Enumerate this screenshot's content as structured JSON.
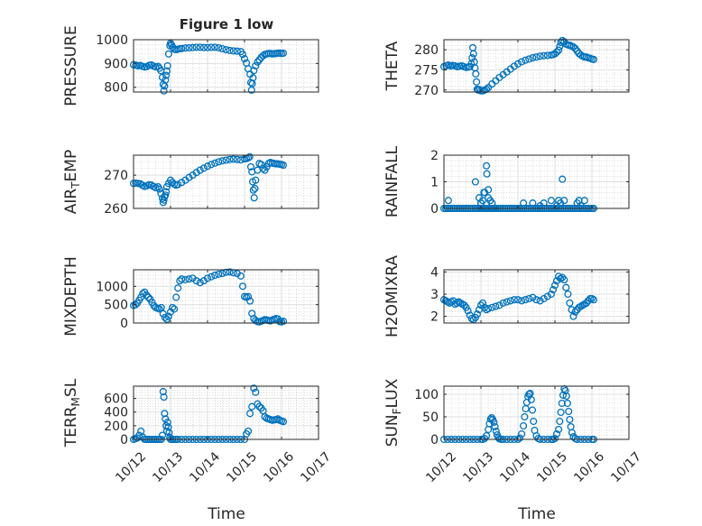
{
  "figure": {
    "title": "Figure 1 low",
    "xlabel": "Time"
  },
  "colors": {
    "marker": "#0072BD",
    "axes": "#262626",
    "grid": "#dfdfdf",
    "minor_grid": "#c8c8c8"
  },
  "x_ticks": [
    "10/12",
    "10/13",
    "10/14",
    "10/15",
    "10/16",
    "10/17"
  ],
  "chart_data": [
    {
      "type": "scatter",
      "ylabel": "PRESSURE",
      "ylim": [
        780,
        1000
      ],
      "yticks": [
        800,
        900,
        1000
      ],
      "grid": "major+minor",
      "marker": "open circle",
      "x": [
        0.0,
        0.06,
        0.12,
        0.18,
        0.24,
        0.3,
        0.36,
        0.42,
        0.48,
        0.54,
        0.6,
        0.66,
        0.7,
        0.74,
        0.78,
        0.8,
        0.82,
        0.84,
        0.86,
        0.88,
        0.9,
        0.92,
        0.95,
        0.98,
        1.0,
        1.03,
        1.06,
        1.1,
        1.15,
        1.2,
        1.25,
        1.3,
        1.4,
        1.5,
        1.6,
        1.7,
        1.8,
        1.9,
        2.0,
        2.1,
        2.2,
        2.3,
        2.4,
        2.5,
        2.6,
        2.7,
        2.8,
        2.9,
        2.95,
        3.0,
        3.05,
        3.1,
        3.15,
        3.17,
        3.19,
        3.21,
        3.23,
        3.25,
        3.3,
        3.35,
        3.4,
        3.45,
        3.5,
        3.55,
        3.6,
        3.65,
        3.7,
        3.75,
        3.8,
        3.85,
        3.9,
        3.95,
        4.0,
        4.05
      ],
      "y": [
        895,
        893,
        890,
        892,
        888,
        885,
        887,
        892,
        894,
        889,
        886,
        888,
        880,
        870,
        842,
        812,
        785,
        805,
        830,
        850,
        868,
        890,
        940,
        975,
        985,
        978,
        968,
        960,
        958,
        960,
        962,
        963,
        965,
        966,
        967,
        968,
        968,
        967,
        967,
        968,
        968,
        966,
        962,
        958,
        955,
        953,
        952,
        950,
        938,
        920,
        902,
        878,
        855,
        820,
        788,
        815,
        840,
        870,
        890,
        906,
        915,
        925,
        932,
        938,
        940,
        942,
        942,
        940,
        941,
        942,
        943,
        944,
        942,
        943
      ]
    },
    {
      "type": "scatter",
      "ylabel": "THETA",
      "ylim": [
        269.5,
        282.5
      ],
      "yticks": [
        270,
        275,
        280
      ],
      "grid": "major+minor",
      "marker": "open circle",
      "x": [
        0.0,
        0.06,
        0.12,
        0.18,
        0.24,
        0.3,
        0.36,
        0.42,
        0.48,
        0.54,
        0.6,
        0.66,
        0.7,
        0.74,
        0.76,
        0.78,
        0.8,
        0.82,
        0.84,
        0.86,
        0.88,
        0.9,
        0.92,
        0.96,
        1.0,
        1.05,
        1.1,
        1.15,
        1.2,
        1.3,
        1.4,
        1.5,
        1.6,
        1.7,
        1.8,
        1.9,
        2.0,
        2.1,
        2.2,
        2.3,
        2.4,
        2.5,
        2.6,
        2.7,
        2.8,
        2.9,
        2.95,
        3.0,
        3.05,
        3.1,
        3.13,
        3.16,
        3.2,
        3.25,
        3.3,
        3.35,
        3.4,
        3.45,
        3.5,
        3.55,
        3.6,
        3.65,
        3.7,
        3.75,
        3.8,
        3.85,
        3.9,
        3.95,
        4.0,
        4.05
      ],
      "y": [
        275.8,
        276.0,
        276.2,
        276.0,
        276.1,
        276.0,
        275.8,
        275.9,
        276.0,
        275.8,
        275.6,
        275.7,
        275.8,
        276.5,
        278.0,
        280.5,
        279.0,
        277.0,
        275.5,
        274.0,
        272.0,
        270.2,
        270.0,
        270.1,
        269.8,
        269.8,
        270.0,
        270.2,
        270.6,
        271.5,
        272.3,
        273.1,
        273.8,
        274.5,
        275.2,
        275.9,
        276.5,
        277.0,
        277.4,
        277.7,
        278.0,
        278.2,
        278.4,
        278.5,
        278.6,
        278.7,
        278.8,
        279.0,
        279.4,
        279.9,
        280.8,
        281.8,
        282.3,
        282.0,
        281.4,
        281.2,
        281.1,
        280.9,
        280.7,
        280.3,
        279.7,
        279.1,
        278.7,
        278.4,
        278.2,
        278.2,
        278.0,
        277.9,
        277.7,
        277.6
      ]
    },
    {
      "type": "scatter",
      "ylabel": "AIR_TEMP",
      "ylim": [
        260,
        276
      ],
      "yticks": [
        260,
        270
      ],
      "grid": "major+minor",
      "marker": "open circle",
      "x": [
        0.0,
        0.06,
        0.12,
        0.18,
        0.24,
        0.3,
        0.36,
        0.42,
        0.48,
        0.54,
        0.6,
        0.66,
        0.7,
        0.74,
        0.78,
        0.8,
        0.82,
        0.84,
        0.86,
        0.88,
        0.9,
        0.95,
        1.0,
        1.05,
        1.1,
        1.15,
        1.2,
        1.3,
        1.4,
        1.5,
        1.6,
        1.7,
        1.8,
        1.9,
        2.0,
        2.1,
        2.2,
        2.3,
        2.4,
        2.5,
        2.6,
        2.7,
        2.8,
        2.9,
        3.0,
        3.05,
        3.1,
        3.14,
        3.17,
        3.2,
        3.22,
        3.24,
        3.26,
        3.28,
        3.3,
        3.35,
        3.4,
        3.45,
        3.5,
        3.55,
        3.6,
        3.65,
        3.7,
        3.75,
        3.8,
        3.85,
        3.9,
        3.95,
        4.0,
        4.05
      ],
      "y": [
        267.5,
        267.6,
        267.5,
        267.4,
        267.0,
        266.6,
        266.8,
        267.1,
        267.0,
        266.6,
        266.2,
        266.5,
        265.8,
        264.5,
        263.0,
        261.8,
        262.5,
        263.5,
        264.0,
        265.0,
        266.5,
        267.5,
        268.5,
        267.8,
        267.3,
        267.0,
        267.2,
        267.8,
        268.5,
        269.3,
        270.0,
        270.8,
        271.5,
        272.1,
        272.7,
        273.2,
        273.6,
        274.0,
        274.3,
        274.5,
        274.7,
        274.8,
        274.7,
        274.6,
        274.9,
        275.0,
        275.2,
        275.5,
        272.5,
        271.0,
        268.0,
        265.5,
        263.2,
        266.0,
        268.5,
        271.5,
        273.5,
        273.2,
        272.0,
        271.5,
        272.5,
        273.5,
        273.8,
        273.6,
        273.5,
        273.4,
        273.4,
        273.3,
        273.2,
        273.0
      ]
    },
    {
      "type": "scatter",
      "ylabel": "RAINFALL",
      "ylim": [
        0,
        2
      ],
      "yticks": [
        0,
        1,
        2
      ],
      "grid": "major+minor",
      "marker": "open circle",
      "x": [
        0.0,
        0.05,
        0.1,
        0.15,
        0.2,
        0.25,
        0.3,
        0.35,
        0.4,
        0.45,
        0.5,
        0.55,
        0.6,
        0.65,
        0.7,
        0.75,
        0.8,
        0.85,
        0.9,
        0.95,
        1.0,
        1.04,
        1.08,
        1.12,
        1.16,
        1.2,
        1.24,
        1.28,
        1.32,
        1.36,
        1.4,
        1.45,
        1.5,
        1.55,
        1.6,
        1.65,
        1.7,
        1.75,
        1.8,
        1.85,
        1.9,
        1.95,
        2.0,
        2.05,
        2.1,
        2.15,
        2.2,
        2.25,
        2.3,
        2.35,
        2.4,
        2.45,
        2.5,
        2.55,
        2.6,
        2.65,
        2.7,
        2.75,
        2.8,
        2.85,
        2.9,
        2.95,
        3.0,
        3.05,
        3.1,
        3.15,
        3.2,
        3.25,
        3.3,
        3.35,
        3.4,
        3.45,
        3.5,
        3.55,
        3.6,
        3.65,
        3.7,
        3.75,
        3.8,
        3.85,
        3.9,
        3.95,
        4.0,
        4.05,
        0.12,
        0.85,
        0.95,
        1.0,
        1.05,
        1.1,
        1.15,
        1.2,
        1.25,
        1.3,
        1.08,
        1.16,
        1.2,
        1.0,
        2.15,
        2.4,
        2.6,
        2.7,
        2.9,
        3.05,
        3.1,
        3.15,
        3.2,
        3.25,
        3.6,
        3.65,
        3.7,
        3.8
      ],
      "y": [
        0,
        0,
        0,
        0,
        0,
        0,
        0,
        0,
        0,
        0,
        0,
        0,
        0,
        0,
        0,
        0,
        0,
        0,
        0,
        0,
        0,
        0,
        0,
        0,
        0,
        0,
        0,
        0,
        0,
        0,
        0,
        0,
        0,
        0,
        0,
        0,
        0,
        0,
        0,
        0,
        0,
        0,
        0,
        0,
        0,
        0,
        0,
        0,
        0,
        0,
        0,
        0,
        0,
        0,
        0,
        0,
        0,
        0,
        0,
        0,
        0,
        0,
        0,
        0,
        0,
        0,
        0,
        0,
        0,
        0,
        0,
        0,
        0,
        0,
        0,
        0,
        0,
        0,
        0,
        0,
        0,
        0,
        0,
        0,
        0.3,
        1.0,
        0.4,
        0.2,
        0.3,
        0.6,
        1.6,
        0.7,
        0.3,
        0.2,
        0.6,
        1.3,
        0.4,
        0.2,
        0.2,
        0.2,
        0.1,
        0.2,
        0.3,
        0.1,
        0.3,
        0.2,
        1.1,
        0.3,
        0.2,
        0.3,
        0.1,
        0.3
      ]
    },
    {
      "type": "scatter",
      "ylabel": "MIXDEPTH",
      "ylim": [
        0,
        1450
      ],
      "yticks": [
        0,
        500,
        1000
      ],
      "grid": "major+minor",
      "marker": "open circle",
      "x": [
        0.0,
        0.05,
        0.1,
        0.15,
        0.2,
        0.25,
        0.3,
        0.35,
        0.4,
        0.45,
        0.5,
        0.55,
        0.6,
        0.65,
        0.7,
        0.75,
        0.8,
        0.85,
        0.9,
        0.95,
        1.0,
        1.05,
        1.1,
        1.15,
        1.2,
        1.25,
        1.3,
        1.4,
        1.5,
        1.6,
        1.7,
        1.8,
        1.9,
        2.0,
        2.1,
        2.2,
        2.3,
        2.4,
        2.5,
        2.6,
        2.7,
        2.8,
        2.9,
        2.95,
        3.0,
        3.05,
        3.1,
        3.15,
        3.2,
        3.25,
        3.3,
        3.35,
        3.4,
        3.45,
        3.5,
        3.55,
        3.6,
        3.65,
        3.7,
        3.75,
        3.8,
        3.85,
        3.9,
        3.95,
        4.0,
        4.05
      ],
      "y": [
        480,
        500,
        540,
        620,
        700,
        800,
        840,
        760,
        700,
        650,
        560,
        470,
        420,
        400,
        380,
        420,
        250,
        150,
        100,
        180,
        300,
        420,
        380,
        700,
        950,
        1150,
        1200,
        1180,
        1200,
        1220,
        1150,
        1100,
        1150,
        1220,
        1260,
        1300,
        1330,
        1350,
        1380,
        1390,
        1370,
        1350,
        1280,
        1000,
        720,
        700,
        720,
        600,
        260,
        120,
        70,
        40,
        30,
        50,
        70,
        90,
        80,
        70,
        60,
        80,
        100,
        120,
        110,
        40,
        30,
        50
      ]
    },
    {
      "type": "scatter",
      "ylabel": "H2OMIXRA",
      "ylim": [
        1.7,
        4.1
      ],
      "yticks": [
        2,
        3,
        4
      ],
      "grid": "major+minor",
      "marker": "open circle",
      "x": [
        0.0,
        0.05,
        0.1,
        0.15,
        0.2,
        0.25,
        0.3,
        0.35,
        0.4,
        0.45,
        0.5,
        0.55,
        0.6,
        0.65,
        0.7,
        0.75,
        0.8,
        0.85,
        0.9,
        0.95,
        1.0,
        1.05,
        1.1,
        1.15,
        1.2,
        1.3,
        1.4,
        1.5,
        1.6,
        1.7,
        1.8,
        1.9,
        2.0,
        2.1,
        2.2,
        2.3,
        2.4,
        2.5,
        2.6,
        2.7,
        2.8,
        2.9,
        2.95,
        3.0,
        3.05,
        3.1,
        3.15,
        3.2,
        3.25,
        3.3,
        3.35,
        3.4,
        3.45,
        3.5,
        3.55,
        3.6,
        3.65,
        3.7,
        3.75,
        3.8,
        3.85,
        3.9,
        3.95,
        4.0,
        4.05
      ],
      "y": [
        2.75,
        2.7,
        2.65,
        2.6,
        2.65,
        2.7,
        2.55,
        2.6,
        2.65,
        2.6,
        2.55,
        2.5,
        2.4,
        2.25,
        2.05,
        1.9,
        1.85,
        1.95,
        2.1,
        2.3,
        2.5,
        2.6,
        2.4,
        2.3,
        2.35,
        2.4,
        2.45,
        2.5,
        2.6,
        2.65,
        2.7,
        2.75,
        2.75,
        2.7,
        2.75,
        2.8,
        2.85,
        2.75,
        2.7,
        2.8,
        2.9,
        3.0,
        3.2,
        3.4,
        3.6,
        3.8,
        3.7,
        3.75,
        3.65,
        3.3,
        3.0,
        2.6,
        2.3,
        2.0,
        2.2,
        2.3,
        2.4,
        2.45,
        2.5,
        2.55,
        2.6,
        2.7,
        2.8,
        2.8,
        2.75
      ]
    },
    {
      "type": "scatter",
      "ylabel": "TERR_MSL",
      "ylim": [
        0,
        780
      ],
      "yticks": [
        0,
        200,
        400,
        600
      ],
      "grid": "major+minor",
      "marker": "open circle",
      "x": [
        0.0,
        0.05,
        0.1,
        0.15,
        0.2,
        0.25,
        0.3,
        0.35,
        0.4,
        0.45,
        0.5,
        0.55,
        0.6,
        0.65,
        0.7,
        0.75,
        0.78,
        0.8,
        0.82,
        0.84,
        0.86,
        0.88,
        0.9,
        0.92,
        0.94,
        0.96,
        0.98,
        1.0,
        1.05,
        1.1,
        1.15,
        1.2,
        1.3,
        1.4,
        1.5,
        1.6,
        1.7,
        1.8,
        1.9,
        2.0,
        2.1,
        2.2,
        2.3,
        2.4,
        2.5,
        2.6,
        2.7,
        2.8,
        2.9,
        3.0,
        3.05,
        3.1,
        3.15,
        3.2,
        3.25,
        3.3,
        3.35,
        3.4,
        3.45,
        3.5,
        3.55,
        3.6,
        3.65,
        3.7,
        3.75,
        3.8,
        3.85,
        3.9,
        3.95,
        4.0,
        4.05
      ],
      "y": [
        0,
        10,
        20,
        60,
        120,
        30,
        0,
        0,
        0,
        0,
        0,
        0,
        0,
        0,
        0,
        0,
        60,
        700,
        620,
        380,
        300,
        200,
        120,
        250,
        180,
        100,
        30,
        0,
        0,
        0,
        0,
        0,
        0,
        0,
        0,
        0,
        0,
        0,
        0,
        0,
        0,
        0,
        0,
        0,
        0,
        0,
        0,
        0,
        0,
        0,
        80,
        120,
        380,
        480,
        750,
        690,
        520,
        480,
        460,
        420,
        330,
        310,
        300,
        290,
        280,
        285,
        290,
        300,
        280,
        270,
        260
      ]
    },
    {
      "type": "scatter",
      "ylabel": "SUN_FLUX",
      "ylim": [
        0,
        118
      ],
      "yticks": [
        0,
        50,
        100
      ],
      "grid": "major+minor",
      "marker": "open circle",
      "x": [
        0.0,
        0.1,
        0.2,
        0.3,
        0.4,
        0.5,
        0.6,
        0.7,
        0.8,
        0.9,
        1.0,
        1.05,
        1.1,
        1.15,
        1.2,
        1.23,
        1.26,
        1.29,
        1.32,
        1.35,
        1.38,
        1.41,
        1.44,
        1.47,
        1.5,
        1.55,
        1.6,
        1.7,
        1.8,
        1.9,
        2.0,
        2.05,
        2.1,
        2.15,
        2.18,
        2.21,
        2.24,
        2.27,
        2.3,
        2.33,
        2.36,
        2.39,
        2.42,
        2.45,
        2.5,
        2.55,
        2.6,
        2.7,
        2.8,
        2.9,
        2.95,
        3.0,
        3.05,
        3.1,
        3.13,
        3.16,
        3.19,
        3.22,
        3.25,
        3.28,
        3.31,
        3.34,
        3.37,
        3.4,
        3.43,
        3.46,
        3.5,
        3.55,
        3.6,
        3.7,
        3.8,
        3.9,
        4.0,
        4.05
      ],
      "y": [
        0,
        0,
        0,
        0,
        0,
        0,
        0,
        0,
        0,
        0,
        0,
        0,
        2,
        8,
        22,
        35,
        45,
        48,
        44,
        38,
        28,
        18,
        10,
        4,
        1,
        0,
        0,
        0,
        0,
        0,
        0,
        3,
        12,
        30,
        50,
        68,
        82,
        95,
        100,
        102,
        88,
        65,
        40,
        20,
        8,
        2,
        0,
        0,
        0,
        0,
        0,
        2,
        12,
        22,
        40,
        60,
        80,
        98,
        112,
        108,
        96,
        80,
        62,
        44,
        28,
        15,
        6,
        2,
        0,
        0,
        0,
        0,
        0,
        0
      ]
    }
  ]
}
